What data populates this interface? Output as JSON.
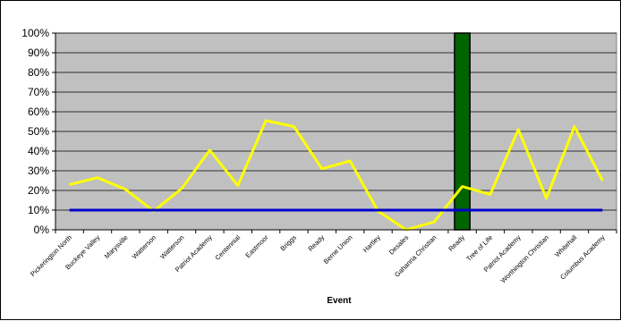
{
  "chart_data": {
    "type": "line",
    "title": "",
    "xlabel": "Event",
    "ylabel": "",
    "ylim": [
      0,
      1
    ],
    "y_ticks": [
      "0%",
      "10%",
      "20%",
      "30%",
      "40%",
      "50%",
      "60%",
      "70%",
      "80%",
      "90%",
      "100%"
    ],
    "grid": true,
    "plot_background": "#c0c0c0",
    "categories": [
      "Pickerington North",
      "Buckeye Valley",
      "Marysville",
      "Watterson",
      "Watterson",
      "Patriot Academy",
      "Centennial",
      "Eastmoor",
      "Briggs",
      "Ready",
      "Berne Union",
      "Hartley",
      "Desales",
      "Gahanna Christian",
      "Ready",
      "Tree of Life",
      "Patriot Academy",
      "Worthington Christian",
      "Whitehall",
      "Columbus Academy"
    ],
    "series": [
      {
        "color": "#ffff00",
        "values": [
          0.23,
          0.265,
          0.205,
          0.095,
          0.21,
          0.405,
          0.225,
          0.555,
          0.525,
          0.31,
          0.35,
          0.095,
          0.0,
          0.04,
          0.22,
          0.18,
          0.51,
          0.16,
          0.525,
          0.25
        ]
      },
      {
        "color": "#0000cc",
        "values": [
          0.1,
          0.1,
          0.1,
          0.1,
          0.1,
          0.1,
          0.1,
          0.1,
          0.1,
          0.1,
          0.1,
          0.1,
          0.1,
          0.1,
          0.1,
          0.1,
          0.1,
          0.1,
          0.1,
          0.1
        ]
      }
    ],
    "highlight_bar": {
      "category_index": 14,
      "value": 1.0,
      "color": "#006400"
    }
  }
}
